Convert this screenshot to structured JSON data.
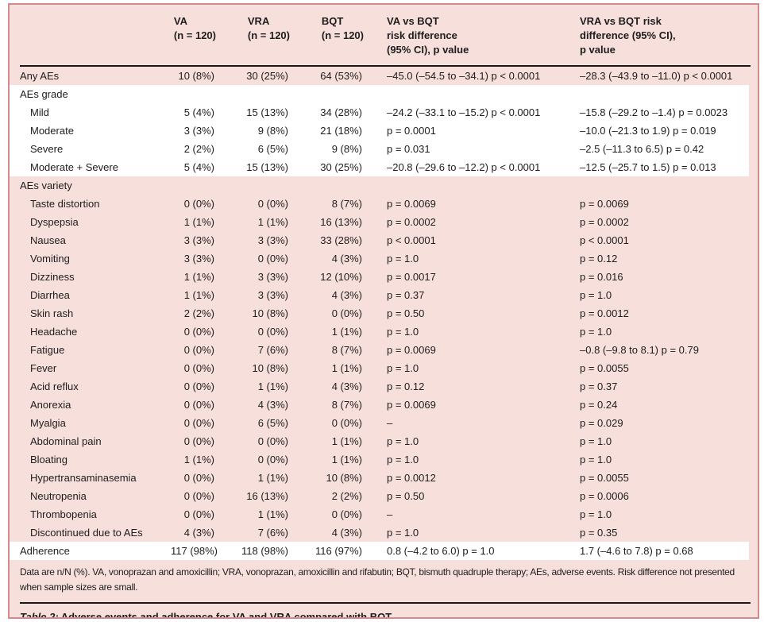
{
  "colors": {
    "table_background_pink": "#f7dfdc",
    "frame_border": "#d28a8d",
    "divider_rule": "#191919",
    "row_white": "#ffffff"
  },
  "table": {
    "columns": {
      "label": "",
      "va": "VA\n(n = 120)",
      "vra": "VRA\n(n = 120)",
      "bqt": "BQT\n(n = 120)",
      "va_vs_bqt": "VA vs BQT\nrisk difference\n(95% CI), p value",
      "vra_vs_bqt": "VRA vs BQT risk\ndifference (95% CI),\np value"
    },
    "rows": [
      {
        "label": "Any AEs",
        "indent": 0,
        "shade": "pink",
        "va": "10 (8%)",
        "vra": "30 (25%)",
        "bqt": "64 (53%)",
        "d1": "–45.0 (–54.5 to –34.1) p < 0.0001",
        "d2": "–28.3 (–43.9 to –11.0) p < 0.0001"
      },
      {
        "label": "AEs grade",
        "indent": 0,
        "shade": "white",
        "section": true,
        "va": "",
        "vra": "",
        "bqt": "",
        "d1": "",
        "d2": ""
      },
      {
        "label": "Mild",
        "indent": 1,
        "shade": "white",
        "va": "5 (4%)",
        "vra": "15 (13%)",
        "bqt": "34 (28%)",
        "d1": "–24.2 (–33.1 to –15.2) p < 0.0001",
        "d2": "–15.8 (–29.2 to –1.4) p = 0.0023"
      },
      {
        "label": "Moderate",
        "indent": 1,
        "shade": "white",
        "va": "3 (3%)",
        "vra": "9 (8%)",
        "bqt": "21 (18%)",
        "d1": "p = 0.0001",
        "d2": "–10.0 (–21.3 to 1.9) p = 0.019"
      },
      {
        "label": "Severe",
        "indent": 1,
        "shade": "white",
        "va": "2 (2%)",
        "vra": "6 (5%)",
        "bqt": "9 (8%)",
        "d1": "p = 0.031",
        "d2": "–2.5 (–11.3 to 6.5) p = 0.42"
      },
      {
        "label": "Moderate + Severe",
        "indent": 1,
        "shade": "white",
        "va": "5 (4%)",
        "vra": "15 (13%)",
        "bqt": "30 (25%)",
        "d1": "–20.8 (–29.6 to –12.2) p < 0.0001",
        "d2": "–12.5 (–25.7 to 1.5) p = 0.013"
      },
      {
        "label": "AEs variety",
        "indent": 0,
        "shade": "pink",
        "section": true,
        "va": "",
        "vra": "",
        "bqt": "",
        "d1": "",
        "d2": ""
      },
      {
        "label": "Taste distortion",
        "indent": 1,
        "shade": "pink",
        "va": "0 (0%)",
        "vra": "0 (0%)",
        "bqt": "8 (7%)",
        "d1": "p = 0.0069",
        "d2": "p = 0.0069"
      },
      {
        "label": "Dyspepsia",
        "indent": 1,
        "shade": "pink",
        "va": "1 (1%)",
        "vra": "1 (1%)",
        "bqt": "16 (13%)",
        "d1": "p = 0.0002",
        "d2": "p = 0.0002"
      },
      {
        "label": "Nausea",
        "indent": 1,
        "shade": "pink",
        "va": "3 (3%)",
        "vra": "3 (3%)",
        "bqt": "33 (28%)",
        "d1": "p < 0.0001",
        "d2": "p < 0.0001"
      },
      {
        "label": "Vomiting",
        "indent": 1,
        "shade": "pink",
        "va": "3 (3%)",
        "vra": "0 (0%)",
        "bqt": "4 (3%)",
        "d1": "p = 1.0",
        "d2": "p = 0.12"
      },
      {
        "label": "Dizziness",
        "indent": 1,
        "shade": "pink",
        "va": "1 (1%)",
        "vra": "3 (3%)",
        "bqt": "12 (10%)",
        "d1": "p = 0.0017",
        "d2": "p = 0.016"
      },
      {
        "label": "Diarrhea",
        "indent": 1,
        "shade": "pink",
        "va": "1 (1%)",
        "vra": "3 (3%)",
        "bqt": "4 (3%)",
        "d1": "p = 0.37",
        "d2": "p = 1.0"
      },
      {
        "label": "Skin rash",
        "indent": 1,
        "shade": "pink",
        "va": "2 (2%)",
        "vra": "10 (8%)",
        "bqt": "0 (0%)",
        "d1": "p = 0.50",
        "d2": "p = 0.0012"
      },
      {
        "label": "Headache",
        "indent": 1,
        "shade": "pink",
        "va": "0 (0%)",
        "vra": "0 (0%)",
        "bqt": "1 (1%)",
        "d1": "p = 1.0",
        "d2": "p = 1.0"
      },
      {
        "label": "Fatigue",
        "indent": 1,
        "shade": "pink",
        "va": "0 (0%)",
        "vra": "7 (6%)",
        "bqt": "8 (7%)",
        "d1": "p = 0.0069",
        "d2": "–0.8 (–9.8 to 8.1) p = 0.79"
      },
      {
        "label": "Fever",
        "indent": 1,
        "shade": "pink",
        "va": "0 (0%)",
        "vra": "10 (8%)",
        "bqt": "1 (1%)",
        "d1": "p = 1.0",
        "d2": "p = 0.0055"
      },
      {
        "label": "Acid reflux",
        "indent": 1,
        "shade": "pink",
        "va": "0 (0%)",
        "vra": "1 (1%)",
        "bqt": "4 (3%)",
        "d1": "p = 0.12",
        "d2": "p = 0.37"
      },
      {
        "label": "Anorexia",
        "indent": 1,
        "shade": "pink",
        "va": "0 (0%)",
        "vra": "4 (3%)",
        "bqt": "8 (7%)",
        "d1": "p = 0.0069",
        "d2": "p = 0.24"
      },
      {
        "label": "Myalgia",
        "indent": 1,
        "shade": "pink",
        "va": "0 (0%)",
        "vra": "6 (5%)",
        "bqt": "0 (0%)",
        "d1": "–",
        "d2": "p = 0.029"
      },
      {
        "label": "Abdominal pain",
        "indent": 1,
        "shade": "pink",
        "va": "0 (0%)",
        "vra": "0 (0%)",
        "bqt": "1 (1%)",
        "d1": "p = 1.0",
        "d2": "p = 1.0"
      },
      {
        "label": "Bloating",
        "indent": 1,
        "shade": "pink",
        "va": "1 (1%)",
        "vra": "0 (0%)",
        "bqt": "1 (1%)",
        "d1": "p = 1.0",
        "d2": "p = 1.0"
      },
      {
        "label": "Hypertransaminasemia",
        "indent": 1,
        "shade": "pink",
        "va": "0 (0%)",
        "vra": "1 (1%)",
        "bqt": "10 (8%)",
        "d1": "p = 0.0012",
        "d2": "p = 0.0055"
      },
      {
        "label": "Neutropenia",
        "indent": 1,
        "shade": "pink",
        "va": "0 (0%)",
        "vra": "16 (13%)",
        "bqt": "2 (2%)",
        "d1": "p = 0.50",
        "d2": "p = 0.0006"
      },
      {
        "label": "Thrombopenia",
        "indent": 1,
        "shade": "pink",
        "va": "0 (0%)",
        "vra": "1 (1%)",
        "bqt": "0 (0%)",
        "d1": "–",
        "d2": "p = 1.0"
      },
      {
        "label": "Discontinued due to AEs",
        "indent": 1,
        "shade": "pink",
        "va": "4 (3%)",
        "vra": "7 (6%)",
        "bqt": "4 (3%)",
        "d1": "p = 1.0",
        "d2": "p = 0.35"
      },
      {
        "label": "Adherence",
        "indent": 0,
        "shade": "white",
        "va": "117 (98%)",
        "vra": "118 (98%)",
        "bqt": "116 (97%)",
        "d1": "0.8 (–4.2 to 6.0) p = 1.0",
        "d2": "1.7 (–4.6 to 7.8) p = 0.68"
      }
    ],
    "footnote": "Data are n/N (%). VA, vonoprazan and amoxicillin; VRA, vonoprazan, amoxicillin and rifabutin; BQT, bismuth quadruple therapy; AEs, adverse events. Risk difference not presented when sample sizes are small.",
    "caption_label": "Table 2:",
    "caption_text": "Adverse events and adherence for VA and VRA compared with BQT."
  }
}
